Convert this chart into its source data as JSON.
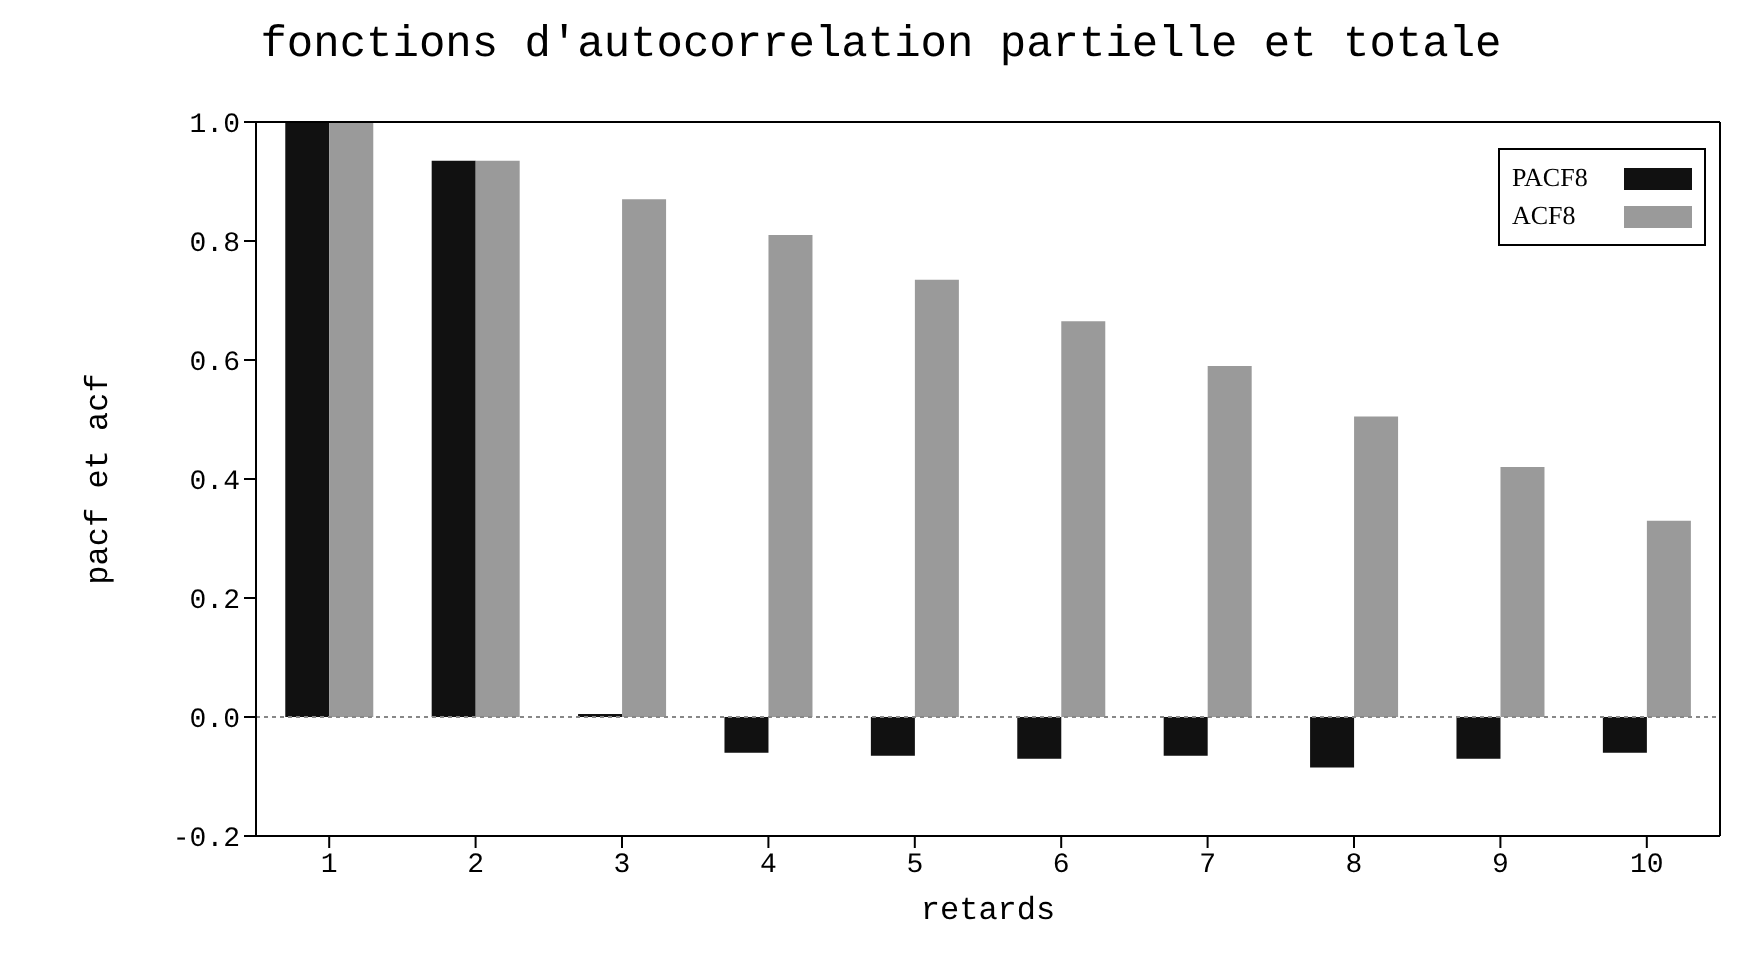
{
  "chart_data": {
    "type": "bar",
    "title": "fonctions d'autocorrelation partielle et totale",
    "xlabel": "retards",
    "ylabel": "pacf et acf",
    "categories": [
      "1",
      "2",
      "3",
      "4",
      "5",
      "6",
      "7",
      "8",
      "9",
      "10"
    ],
    "series": [
      {
        "name": "PACF8",
        "color": "#111111",
        "values": [
          1.0,
          0.935,
          0.005,
          -0.06,
          -0.065,
          -0.07,
          -0.065,
          -0.085,
          -0.07,
          -0.06
        ]
      },
      {
        "name": "ACF8",
        "color": "#9a9a9a",
        "values": [
          1.0,
          0.935,
          0.87,
          0.81,
          0.735,
          0.665,
          0.59,
          0.505,
          0.42,
          0.33
        ]
      }
    ],
    "ylim": [
      -0.2,
      1.0
    ],
    "yticks": [
      {
        "value": -0.2,
        "label": "-0.2"
      },
      {
        "value": 0,
        "label": "0.0"
      },
      {
        "value": 0.2,
        "label": "0.2"
      },
      {
        "value": 0.4,
        "label": "0.4"
      },
      {
        "value": 0.6,
        "label": "0.6"
      },
      {
        "value": 0.8,
        "label": "0.8"
      },
      {
        "value": 1.0,
        "label": "1.0"
      }
    ],
    "ref_lines": [
      {
        "axis": "y",
        "value": 0,
        "color": "#888888",
        "line_style": "dotted"
      }
    ],
    "grid": false,
    "legend": "top right"
  }
}
